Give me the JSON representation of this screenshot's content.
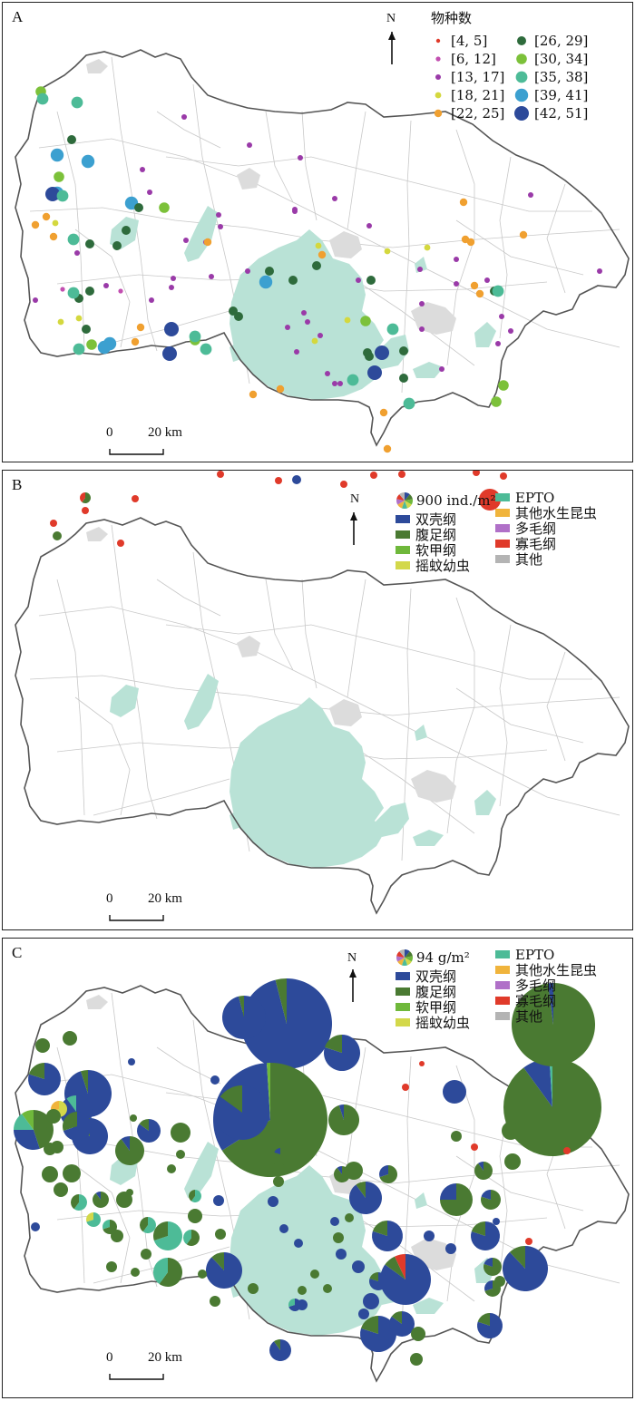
{
  "colors": {
    "lake": "#b9e2d6",
    "roads": "#c8c8c8",
    "boundary": "#555555",
    "urban": "#dcdcdc",
    "双壳纲": "#2d4a9a",
    "腹足纲": "#4a7a32",
    "软甲纲": "#6fb83b",
    "摇蚊幼虫": "#d3d84a",
    "EPTO": "#4dbb97",
    "其他水生昆虫": "#f0b43c",
    "多毛纲": "#b070c8",
    "寡毛纲": "#e03a2a",
    "其他": "#b4b4b4"
  },
  "panels": [
    {
      "label": "A",
      "north": "N",
      "scale": {
        "zero": "0",
        "distance": "20 km"
      },
      "legend": {
        "title": "物种数",
        "classes": [
          {
            "label": "[4, 5]",
            "color": "#e03a2a"
          },
          {
            "label": "[6, 12]",
            "color": "#c24fb0"
          },
          {
            "label": "[13, 17]",
            "color": "#9a3aa8"
          },
          {
            "label": "[18, 21]",
            "color": "#d4d83e"
          },
          {
            "label": "[22, 25]",
            "color": "#f0a030"
          },
          {
            "label": "[26, 29]",
            "color": "#2e6b3c"
          },
          {
            "label": "[30, 34]",
            "color": "#7cc13a"
          },
          {
            "label": "[35, 38]",
            "color": "#4dbb97"
          },
          {
            "label": "[39, 41]",
            "color": "#3ca0d0"
          },
          {
            "label": "[42, 51]",
            "color": "#2d4a9a"
          }
        ]
      }
    },
    {
      "label": "B",
      "north": "N",
      "scale": {
        "zero": "0",
        "distance": "20 km"
      },
      "legend": {
        "reference": "900 ind./m²",
        "groups": [
          "双壳纲",
          "腹足纲",
          "软甲纲",
          "摇蚊幼虫",
          "EPTO",
          "其他水生昆虫",
          "多毛纲",
          "寡毛纲",
          "其他"
        ]
      }
    },
    {
      "label": "C",
      "north": "N",
      "scale": {
        "zero": "0",
        "distance": "20 km"
      },
      "legend": {
        "reference": "94 g/m²",
        "groups": [
          "双壳纲",
          "腹足纲",
          "软甲纲",
          "摇蚊幼虫",
          "EPTO",
          "其他水生昆虫",
          "多毛纲",
          "寡毛纲",
          "其他"
        ]
      }
    }
  ]
}
